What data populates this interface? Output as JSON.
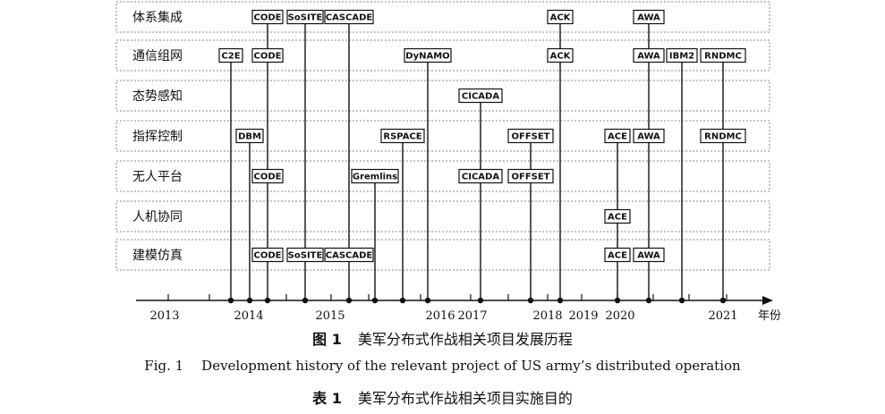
{
  "rows": [
    {
      "label": "体系集成"
    },
    {
      "label": "通信组网"
    },
    {
      "label": "态势感知"
    },
    {
      "label": "指挥控制"
    },
    {
      "label": "无人平台"
    },
    {
      "label": "人机协同"
    },
    {
      "label": "建模仿真"
    }
  ],
  "axis": {
    "unit": "年份",
    "year_labels": [
      "2013",
      "2014",
      "2015",
      "2016",
      "2017",
      "2018",
      "2019",
      "2020",
      "2021"
    ]
  },
  "projects": [
    {
      "name": "C2E",
      "rows": [
        1
      ]
    },
    {
      "name": "DBM",
      "rows": [
        3
      ]
    },
    {
      "name": "CODE",
      "rows": [
        0,
        1,
        4,
        6
      ]
    },
    {
      "name": "SoSITE",
      "rows": [
        0,
        6
      ]
    },
    {
      "name": "CASCADE",
      "rows": [
        0,
        6
      ]
    },
    {
      "name": "Gremlins",
      "rows": [
        4
      ]
    },
    {
      "name": "RSPACE",
      "rows": [
        3
      ]
    },
    {
      "name": "DyNAMO",
      "rows": [
        1
      ]
    },
    {
      "name": "CICADA",
      "rows": [
        2,
        4
      ]
    },
    {
      "name": "OFFSET",
      "rows": [
        3,
        4
      ]
    },
    {
      "name": "ACK",
      "rows": [
        0,
        1
      ]
    },
    {
      "name": "ACE",
      "rows": [
        3,
        5,
        6
      ]
    },
    {
      "name": "AWA",
      "rows": [
        0,
        1,
        3,
        6
      ]
    },
    {
      "name": "IBM2",
      "rows": [
        1
      ]
    },
    {
      "name": "RNDMC",
      "rows": [
        1,
        3
      ]
    }
  ],
  "captions": {
    "figure_cn_number": "图 1",
    "figure_cn_title": "美军分布式作战相关项目发展历程",
    "figure_en_number": "Fig. 1",
    "figure_en_title": "Development history of the relevant project of US army’s distributed operation",
    "table_cn_number": "表 1",
    "table_cn_title": "美军分布式作战相关项目实施目的"
  }
}
